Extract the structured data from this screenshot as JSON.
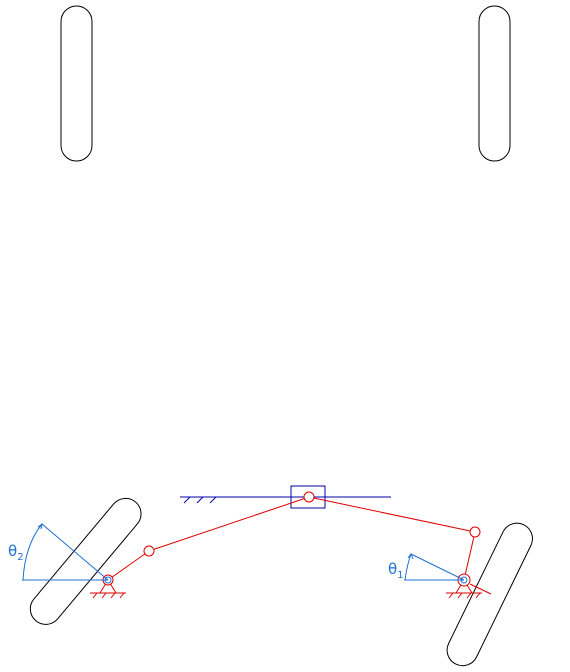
{
  "labels": {
    "theta2": {
      "symbol": "θ",
      "sub": "2"
    },
    "theta1": {
      "symbol": "θ",
      "sub": "1"
    }
  },
  "colors": {
    "tyre": "#000000",
    "ground": "#0000aa",
    "linkage": "#e00000",
    "reference": "#1e6fd6"
  }
}
